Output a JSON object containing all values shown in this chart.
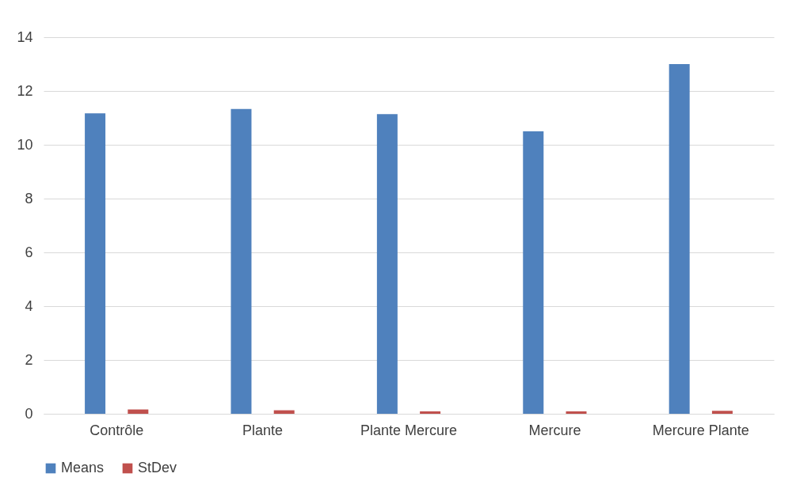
{
  "chart_data": {
    "type": "bar",
    "categories": [
      "Contrôle",
      "Plante",
      "Plante Mercure",
      "Mercure",
      "Mercure Plante"
    ],
    "series": [
      {
        "name": "Means",
        "color": "#4f81bd",
        "values": [
          11.17,
          11.33,
          11.14,
          10.5,
          13.0
        ]
      },
      {
        "name": "StDev",
        "color": "#c0504d",
        "values": [
          0.16,
          0.13,
          0.09,
          0.09,
          0.11
        ]
      }
    ],
    "ylim": [
      0,
      14
    ],
    "yticks": [
      0,
      2,
      4,
      6,
      8,
      10,
      12,
      14
    ],
    "grid": "y",
    "legend": "bottom"
  }
}
